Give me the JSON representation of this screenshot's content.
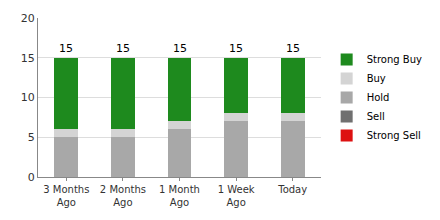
{
  "chart_data": {
    "type": "bar",
    "stacked": true,
    "categories": [
      "3 Months Ago",
      "2 Months Ago",
      "1 Month Ago",
      "1 Week Ago",
      "Today"
    ],
    "series": [
      {
        "name": "Strong Buy",
        "color": "#1e8a1e",
        "values": [
          9,
          9,
          8,
          7,
          7
        ]
      },
      {
        "name": "Buy",
        "color": "#d4d4d4",
        "values": [
          1,
          1,
          1,
          1,
          1
        ]
      },
      {
        "name": "Hold",
        "color": "#a8a8a8",
        "values": [
          5,
          5,
          6,
          7,
          7
        ]
      },
      {
        "name": "Sell",
        "color": "#707070",
        "values": [
          0,
          0,
          0,
          0,
          0
        ]
      },
      {
        "name": "Strong Sell",
        "color": "#dd1111",
        "values": [
          0,
          0,
          0,
          0,
          0
        ]
      }
    ],
    "totals": [
      15,
      15,
      15,
      15,
      15
    ],
    "ylim": [
      0,
      20
    ],
    "yticks": [
      0,
      5,
      10,
      15,
      20
    ],
    "grid": true,
    "legend": "right"
  }
}
